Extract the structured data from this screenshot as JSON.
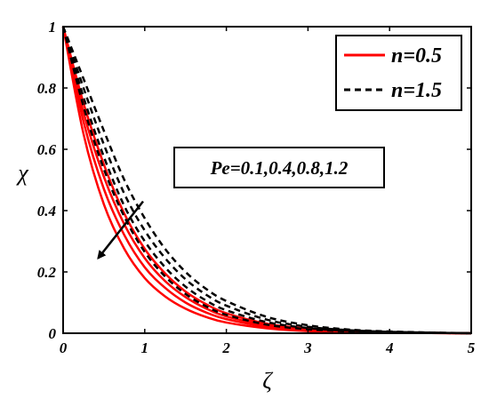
{
  "chart_data": {
    "type": "line",
    "xlabel": "ζ",
    "ylabel": "χ",
    "xlim": [
      0,
      5
    ],
    "ylim": [
      0,
      1
    ],
    "xticks": [
      "0",
      "1",
      "2",
      "3",
      "4",
      "5"
    ],
    "yticks": [
      "0",
      "0.2",
      "0.4",
      "0.6",
      "0.8",
      "1"
    ],
    "grid": false,
    "legend_position": "top-right",
    "legend": [
      {
        "label": "n=0.5",
        "color": "#ff0000",
        "style": "solid"
      },
      {
        "label": "n=1.5",
        "color": "#000000",
        "style": "dashed"
      }
    ],
    "annotation": {
      "text": "Pe=0.1,0.4,0.8,1.2",
      "arrow_from": [
        0.98,
        0.43
      ],
      "arrow_to": [
        0.43,
        0.245
      ]
    },
    "x": [
      0,
      0.25,
      0.5,
      0.75,
      1.0,
      1.25,
      1.5,
      1.75,
      2.0,
      2.5,
      3.0,
      3.5,
      4.0,
      4.5,
      5.0
    ],
    "series": [
      {
        "color": "#ff0000",
        "style": "solid",
        "values": [
          1.0,
          0.65,
          0.42,
          0.275,
          0.18,
          0.12,
          0.08,
          0.053,
          0.035,
          0.016,
          0.007,
          0.003,
          0.0015,
          0.0006,
          0.0
        ]
      },
      {
        "color": "#ff0000",
        "style": "solid",
        "values": [
          1.0,
          0.69,
          0.47,
          0.32,
          0.215,
          0.148,
          0.1,
          0.068,
          0.046,
          0.021,
          0.01,
          0.0045,
          0.002,
          0.0008,
          0.0
        ]
      },
      {
        "color": "#ff0000",
        "style": "solid",
        "values": [
          1.0,
          0.72,
          0.51,
          0.355,
          0.245,
          0.17,
          0.118,
          0.081,
          0.055,
          0.026,
          0.012,
          0.0055,
          0.0025,
          0.001,
          0.0
        ]
      },
      {
        "color": "#ff0000",
        "style": "solid",
        "values": [
          1.0,
          0.75,
          0.55,
          0.39,
          0.275,
          0.195,
          0.136,
          0.095,
          0.065,
          0.031,
          0.015,
          0.007,
          0.003,
          0.0012,
          0.0
        ]
      },
      {
        "color": "#000000",
        "style": "dashed",
        "values": [
          1.0,
          0.74,
          0.535,
          0.38,
          0.265,
          0.185,
          0.128,
          0.088,
          0.06,
          0.028,
          0.013,
          0.006,
          0.0028,
          0.0011,
          0.0
        ]
      },
      {
        "color": "#000000",
        "style": "dashed",
        "values": [
          1.0,
          0.77,
          0.575,
          0.415,
          0.3,
          0.215,
          0.152,
          0.107,
          0.075,
          0.036,
          0.017,
          0.008,
          0.0037,
          0.0015,
          0.0
        ]
      },
      {
        "color": "#000000",
        "style": "dashed",
        "values": [
          1.0,
          0.8,
          0.615,
          0.455,
          0.335,
          0.245,
          0.176,
          0.126,
          0.09,
          0.044,
          0.021,
          0.01,
          0.0046,
          0.0019,
          0.0
        ]
      },
      {
        "color": "#000000",
        "style": "dashed",
        "values": [
          1.0,
          0.83,
          0.66,
          0.5,
          0.375,
          0.275,
          0.2,
          0.145,
          0.105,
          0.053,
          0.026,
          0.012,
          0.0057,
          0.0023,
          0.0
        ]
      }
    ]
  }
}
